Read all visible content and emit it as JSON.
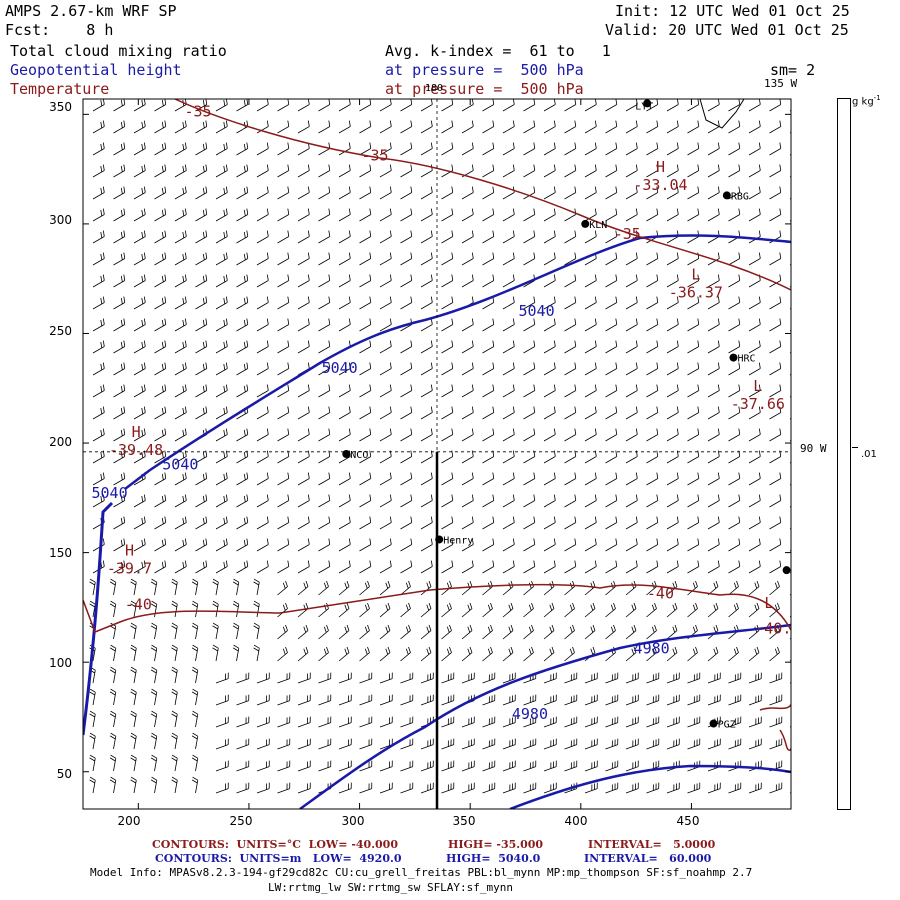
{
  "header": {
    "model": "AMPS 2.67-km WRF SP",
    "fcst": "Fcst:    8 h",
    "init": "Init: 12 UTC Wed 01 Oct 25",
    "valid": "Valid: 20 UTC Wed 01 Oct 25",
    "field1": "Total cloud mixing ratio",
    "field1_level": "Avg. k-index =  61 to   1",
    "field2": "Geopotential height",
    "field2_level": "at pressure =  500 hPa",
    "field3": "Temperature",
    "field3_level": "at pressure =  500 hPa",
    "sm": "sm= 2"
  },
  "colors": {
    "height_contour": "#1a1aa8",
    "temperature_contour": "#8b1a1a",
    "axis": "#000000"
  },
  "axes": {
    "x_ticks": [
      "200",
      "250",
      "300",
      "350",
      "400",
      "450"
    ],
    "y_ticks": [
      "50",
      "100",
      "150",
      "200",
      "250",
      "300",
      "350"
    ],
    "x_range": [
      175,
      495
    ],
    "y_range": [
      33,
      357
    ]
  },
  "overlay": {
    "grid_x": 335,
    "grid_y": 196,
    "top_meridian": "180",
    "right_meridian_top": "135 W",
    "right_meridian_mid": "90 W"
  },
  "colorbar": {
    "units": "g kg",
    "units_sup": "-1",
    "value": ".01"
  },
  "stations": [
    {
      "name": "LYT",
      "x": 430,
      "y": 355,
      "dx": -12,
      "dy": 2
    },
    {
      "name": "RBG",
      "x": 466,
      "y": 313,
      "dx": 4,
      "dy": 0
    },
    {
      "name": "KLN",
      "x": 402,
      "y": 300,
      "dx": 4,
      "dy": 0
    },
    {
      "name": "HRC",
      "x": 469,
      "y": 239,
      "dx": 4,
      "dy": 0
    },
    {
      "name": "NCO",
      "x": 294,
      "y": 195,
      "dx": 4,
      "dy": 0
    },
    {
      "name": "Henry",
      "x": 336,
      "y": 156,
      "dx": 4,
      "dy": 0
    },
    {
      "name": "",
      "x": 493,
      "y": 142,
      "dx": 0,
      "dy": 0
    },
    {
      "name": "PGZ",
      "x": 460,
      "y": 72,
      "dx": 4,
      "dy": 0
    }
  ],
  "contour_labels": {
    "height": [
      {
        "text": "5040",
        "x": 380,
        "y": 258
      },
      {
        "text": "5040",
        "x": 291,
        "y": 232
      },
      {
        "text": "5040",
        "x": 219,
        "y": 188
      },
      {
        "text": "5040",
        "x": 187,
        "y": 175
      },
      {
        "text": "4980",
        "x": 432,
        "y": 104
      },
      {
        "text": "4980",
        "x": 377,
        "y": 74
      }
    ],
    "temperature": [
      {
        "text": "-35",
        "x": 227,
        "y": 349
      },
      {
        "text": "-35",
        "x": 307,
        "y": 329
      },
      {
        "text": "-35",
        "x": 421,
        "y": 293
      },
      {
        "text": "-40",
        "x": 200,
        "y": 124
      },
      {
        "text": "-40",
        "x": 436,
        "y": 129
      },
      {
        "text": "-40.",
        "x": 487,
        "y": 113
      }
    ],
    "extrema": [
      {
        "letter": "H",
        "value": "-33.04",
        "x": 436,
        "y": 320,
        "kind": "temp"
      },
      {
        "letter": "L",
        "value": "-36.37",
        "x": 452,
        "y": 271,
        "kind": "temp"
      },
      {
        "letter": "L",
        "value": "-37.66",
        "x": 480,
        "y": 220,
        "kind": "temp"
      },
      {
        "letter": "H",
        "value": "-39.48",
        "x": 199,
        "y": 199,
        "kind": "temp"
      },
      {
        "letter": "H",
        "value": "-39.7",
        "x": 196,
        "y": 145,
        "kind": "temp"
      },
      {
        "letter": "L",
        "value": "",
        "x": 485,
        "y": 121,
        "kind": "temp"
      }
    ]
  },
  "footer": {
    "line1_a": "CONTOURS:  UNITS=°C  LOW= -40.000",
    "line1_b": "HIGH= -35.000",
    "line1_c": "INTERVAL=   5.0000",
    "line2_a": "CONTOURS:  UNITS=m   LOW=  4920.0",
    "line2_b": "HIGH=  5040.0",
    "line2_c": "INTERVAL=   60.000",
    "model_info": "Model Info: MPASv8.2.3-194-gf29cd82c CU:cu_grell_freitas PBL:bl_mynn MP:mp_thompson SF:sf_noahmp 2.7",
    "model_info2": "LW:rrtmg_lw SW:rrtmg_sw SFLAY:sf_mynn"
  }
}
